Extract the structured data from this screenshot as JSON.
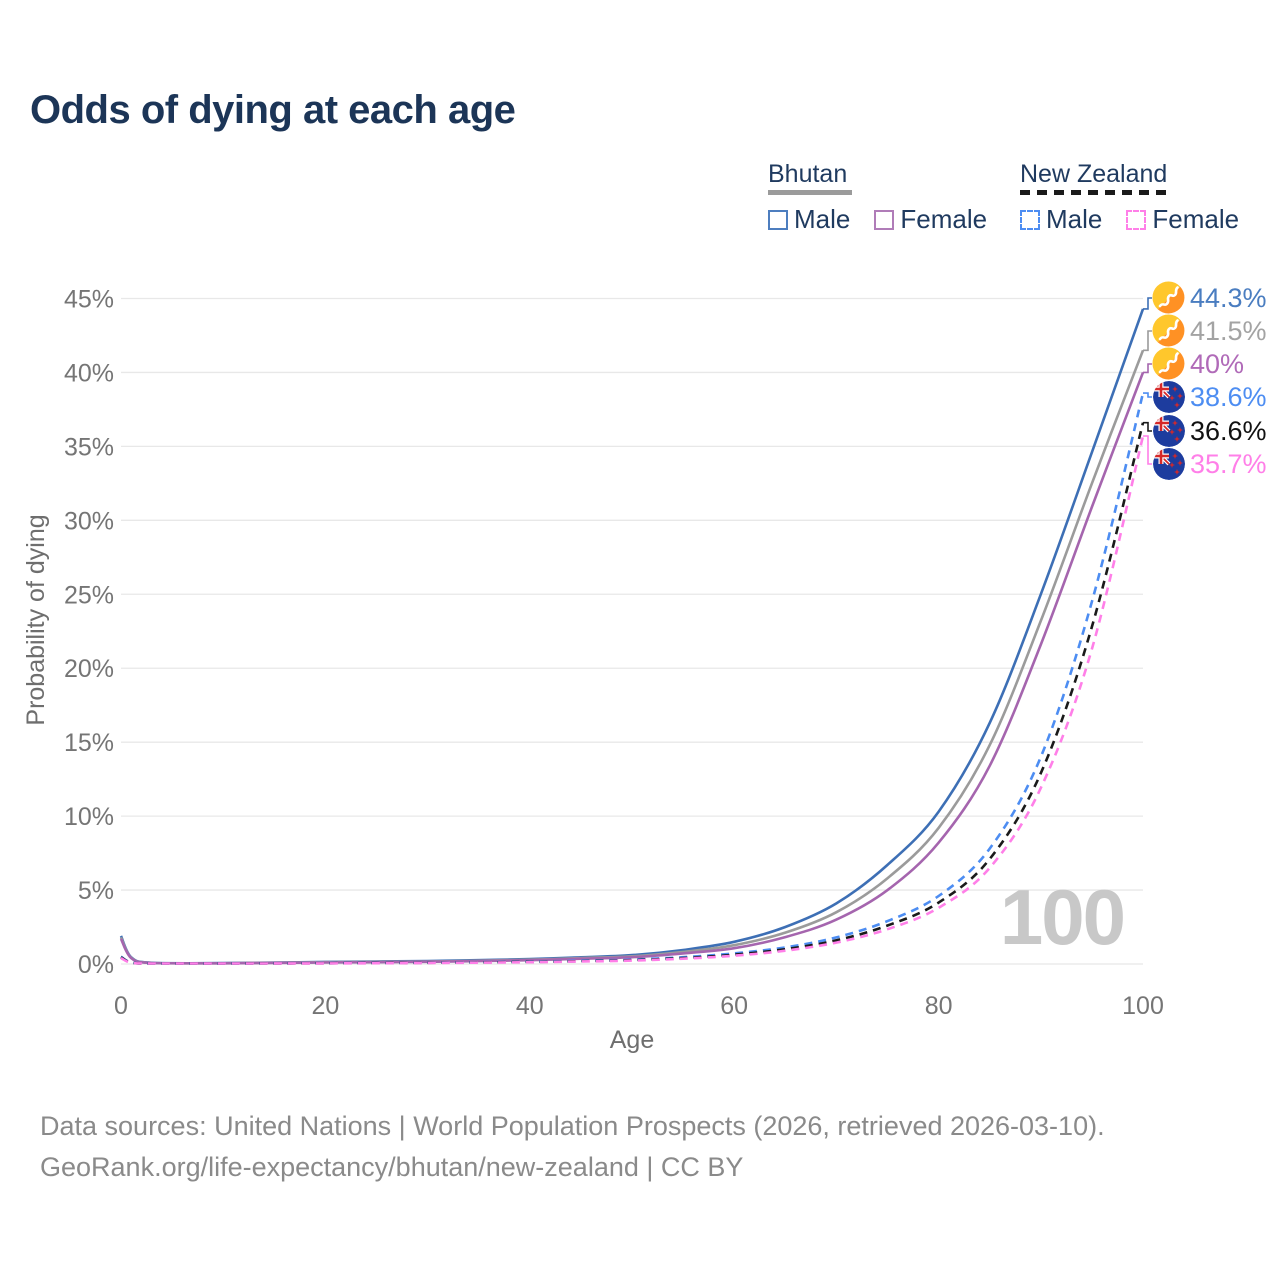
{
  "title": "Odds of dying at each age",
  "legend": {
    "groups": [
      {
        "label": "Bhutan",
        "line_style": "solid",
        "underline_color": "#9b9b9b",
        "items": [
          {
            "label": "Male",
            "color": "#4d7ebf"
          },
          {
            "label": "Female",
            "color": "#b07cb8"
          }
        ]
      },
      {
        "label": "New Zealand",
        "line_style": "dashed",
        "underline_color": "#1a1a1a",
        "items": [
          {
            "label": "Male",
            "color": "#4d8df2"
          },
          {
            "label": "Female",
            "color": "#ff7fe8"
          }
        ]
      }
    ]
  },
  "chart_data": {
    "type": "line",
    "xlabel": "Age",
    "ylabel": "Probability of dying",
    "xlim": [
      0,
      100
    ],
    "ylim": [
      0,
      45
    ],
    "x_ticks": [
      "0",
      "20",
      "40",
      "60",
      "80",
      "100"
    ],
    "x_tick_values": [
      0,
      20,
      40,
      60,
      80,
      100
    ],
    "y_ticks": [
      "0%",
      "5%",
      "10%",
      "15%",
      "20%",
      "25%",
      "30%",
      "35%",
      "40%",
      "45%"
    ],
    "y_tick_values": [
      0,
      5,
      10,
      15,
      20,
      25,
      30,
      35,
      40,
      45
    ],
    "grid": true,
    "watermark": "100",
    "legend_position": "top-right",
    "series": [
      {
        "name": "Bhutan Male",
        "country": "Bhutan",
        "sex": "Male",
        "color": "#3d6fb5",
        "label_color": "#4a7dc0",
        "dashed": false,
        "flag": "bhutan",
        "end_label": "44.3%",
        "end_value": 44.3,
        "points": [
          [
            0,
            1.9
          ],
          [
            1,
            0.45
          ],
          [
            3,
            0.08
          ],
          [
            10,
            0.06
          ],
          [
            20,
            0.14
          ],
          [
            30,
            0.2
          ],
          [
            40,
            0.33
          ],
          [
            45,
            0.45
          ],
          [
            50,
            0.6
          ],
          [
            55,
            0.95
          ],
          [
            60,
            1.5
          ],
          [
            65,
            2.5
          ],
          [
            70,
            4.1
          ],
          [
            75,
            6.7
          ],
          [
            80,
            10.3
          ],
          [
            85,
            16.3
          ],
          [
            90,
            25.0
          ],
          [
            95,
            34.6
          ],
          [
            100,
            44.3
          ]
        ]
      },
      {
        "name": "Bhutan Both sexes",
        "country": "Bhutan",
        "sex": "Both",
        "color": "#9b9b9b",
        "label_color": "#a3a3a3",
        "dashed": false,
        "flag": "bhutan",
        "end_label": "41.5%",
        "end_value": 41.5,
        "points": [
          [
            0,
            1.8
          ],
          [
            1,
            0.42
          ],
          [
            3,
            0.07
          ],
          [
            10,
            0.05
          ],
          [
            20,
            0.12
          ],
          [
            30,
            0.17
          ],
          [
            40,
            0.29
          ],
          [
            45,
            0.4
          ],
          [
            50,
            0.52
          ],
          [
            55,
            0.82
          ],
          [
            60,
            1.27
          ],
          [
            65,
            2.12
          ],
          [
            70,
            3.5
          ],
          [
            75,
            5.8
          ],
          [
            80,
            9.2
          ],
          [
            85,
            14.8
          ],
          [
            90,
            23.2
          ],
          [
            95,
            32.5
          ],
          [
            100,
            41.5
          ]
        ]
      },
      {
        "name": "Bhutan Female",
        "country": "Bhutan",
        "sex": "Female",
        "color": "#a565ae",
        "label_color": "#b06ab8",
        "dashed": false,
        "flag": "bhutan",
        "end_label": "40%",
        "end_value": 40,
        "points": [
          [
            0,
            1.7
          ],
          [
            1,
            0.4
          ],
          [
            3,
            0.07
          ],
          [
            10,
            0.05
          ],
          [
            20,
            0.1
          ],
          [
            30,
            0.15
          ],
          [
            40,
            0.26
          ],
          [
            45,
            0.36
          ],
          [
            50,
            0.46
          ],
          [
            55,
            0.72
          ],
          [
            60,
            1.07
          ],
          [
            65,
            1.82
          ],
          [
            70,
            3.0
          ],
          [
            75,
            5.0
          ],
          [
            80,
            8.2
          ],
          [
            85,
            13.4
          ],
          [
            90,
            21.6
          ],
          [
            95,
            30.9
          ],
          [
            100,
            40.0
          ]
        ]
      },
      {
        "name": "New Zealand Male",
        "country": "New Zealand",
        "sex": "Male",
        "color": "#4d8df2",
        "label_color": "#4d8df2",
        "dashed": true,
        "flag": "new-zealand",
        "end_label": "38.6%",
        "end_value": 38.6,
        "points": [
          [
            0,
            0.5
          ],
          [
            1,
            0.1
          ],
          [
            3,
            0.03
          ],
          [
            10,
            0.02
          ],
          [
            20,
            0.06
          ],
          [
            30,
            0.09
          ],
          [
            40,
            0.16
          ],
          [
            45,
            0.22
          ],
          [
            50,
            0.3
          ],
          [
            55,
            0.46
          ],
          [
            60,
            0.72
          ],
          [
            65,
            1.12
          ],
          [
            70,
            1.8
          ],
          [
            75,
            2.9
          ],
          [
            80,
            4.6
          ],
          [
            85,
            7.8
          ],
          [
            90,
            14.0
          ],
          [
            95,
            24.5
          ],
          [
            100,
            38.6
          ]
        ]
      },
      {
        "name": "New Zealand Both sexes",
        "country": "New Zealand",
        "sex": "Both",
        "color": "#1a1a1a",
        "label_color": "#111111",
        "dashed": true,
        "flag": "new-zealand",
        "end_label": "36.6%",
        "end_value": 36.6,
        "points": [
          [
            0,
            0.45
          ],
          [
            1,
            0.09
          ],
          [
            3,
            0.025
          ],
          [
            10,
            0.015
          ],
          [
            20,
            0.05
          ],
          [
            30,
            0.08
          ],
          [
            40,
            0.14
          ],
          [
            45,
            0.19
          ],
          [
            50,
            0.26
          ],
          [
            55,
            0.4
          ],
          [
            60,
            0.63
          ],
          [
            65,
            1.0
          ],
          [
            70,
            1.6
          ],
          [
            75,
            2.6
          ],
          [
            80,
            4.15
          ],
          [
            85,
            7.1
          ],
          [
            90,
            12.9
          ],
          [
            95,
            22.8
          ],
          [
            100,
            36.6
          ]
        ]
      },
      {
        "name": "New Zealand Female",
        "country": "New Zealand",
        "sex": "Female",
        "color": "#ff7fe8",
        "label_color": "#ff7fe8",
        "dashed": true,
        "flag": "new-zealand",
        "end_label": "35.7%",
        "end_value": 35.7,
        "points": [
          [
            0,
            0.4
          ],
          [
            1,
            0.08
          ],
          [
            3,
            0.02
          ],
          [
            10,
            0.012
          ],
          [
            20,
            0.04
          ],
          [
            30,
            0.07
          ],
          [
            40,
            0.12
          ],
          [
            45,
            0.17
          ],
          [
            50,
            0.23
          ],
          [
            55,
            0.36
          ],
          [
            60,
            0.56
          ],
          [
            65,
            0.9
          ],
          [
            70,
            1.45
          ],
          [
            75,
            2.35
          ],
          [
            80,
            3.8
          ],
          [
            85,
            6.5
          ],
          [
            90,
            11.9
          ],
          [
            95,
            21.3
          ],
          [
            100,
            35.7
          ]
        ]
      }
    ]
  },
  "footer": {
    "line1": "Data sources: United Nations | World Population Prospects (2026, retrieved 2026-03-10).",
    "line2": "GeoRank.org/life-expectancy/bhutan/new-zealand | CC BY"
  }
}
